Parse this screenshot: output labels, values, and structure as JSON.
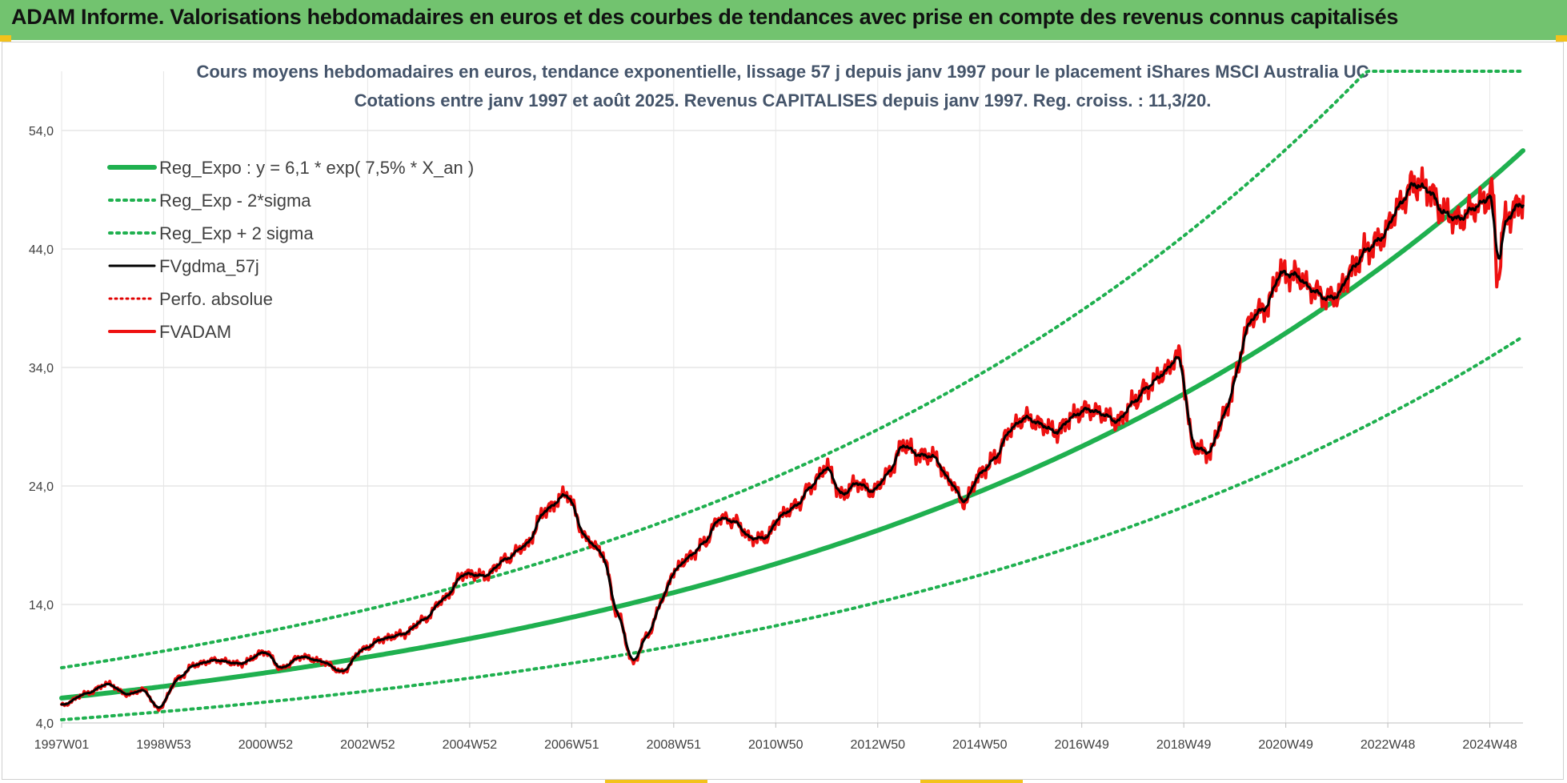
{
  "header": {
    "title": "ADAM Informe. Valorisations hebdomadaires en euros et des courbes de tendances avec prise en compte des revenus connus capitalisés"
  },
  "chart_data": {
    "type": "line",
    "title_lines": [
      "Cours moyens hebdomadaires en euros, tendance exponentielle, lissage 57 j depuis janv 1997 pour le placement iShares MSCI Australia UC",
      "Cotations entre janv 1997 et août 2025. Revenus CAPITALISES depuis janv 1997. Reg. croiss. : 11,3/20."
    ],
    "xlabel": "",
    "ylabel": "",
    "x_tick_labels": [
      "1997W01",
      "1998W53",
      "2000W52",
      "2002W52",
      "2004W52",
      "2006W51",
      "2008W51",
      "2010W50",
      "2012W50",
      "2014W50",
      "2016W49",
      "2018W49",
      "2020W49",
      "2022W48",
      "2024W48"
    ],
    "x_range_years": [
      1997.0,
      2025.65
    ],
    "y_tick_labels": [
      "4,0",
      "14,0",
      "24,0",
      "34,0",
      "44,0",
      "54,0"
    ],
    "y_ticks": [
      4,
      14,
      24,
      34,
      44,
      54
    ],
    "ylim": [
      4,
      59
    ],
    "grid": true,
    "legend_position": "top-left",
    "regression": {
      "a": 6.1,
      "rate": 0.075,
      "label": "Reg_Expo : y = 6,1 * exp( 7,5% *  X_an )"
    },
    "series": [
      {
        "name": "Reg_Expo : y = 6,1 * exp( 7,5% *  X_an )",
        "color": "#1fb04f",
        "style": "solid",
        "width": 6,
        "kind": "trend"
      },
      {
        "name": "Reg_Exp - 2*sigma",
        "color": "#1fb04f",
        "style": "dotted",
        "width": 4,
        "kind": "lower",
        "factor": 0.7
      },
      {
        "name": "Reg_Exp + 2 sigma",
        "color": "#1fb04f",
        "style": "dotted",
        "width": 4,
        "kind": "upper",
        "factor": 1.42,
        "cap": 59
      },
      {
        "name": "FVgdma_57j",
        "color": "#000000",
        "style": "solid",
        "width": 3,
        "kind": "smooth"
      },
      {
        "name": "Perfo. absolue",
        "color": "#e00000",
        "style": "dotted",
        "width": 3,
        "kind": "perfo"
      },
      {
        "name": "FVADAM",
        "color": "#ee1111",
        "style": "solid",
        "width": 4,
        "kind": "price"
      }
    ],
    "price_anchors": {
      "x": [
        1997.0,
        1997.5,
        1997.9,
        1998.3,
        1998.6,
        1998.9,
        1999.3,
        1999.6,
        2000.0,
        2000.5,
        2001.0,
        2001.3,
        2001.7,
        2002.1,
        2002.5,
        2002.9,
        2003.3,
        2003.7,
        2004.1,
        2004.5,
        2004.9,
        2005.3,
        2005.7,
        2006.1,
        2006.5,
        2006.9,
        2007.3,
        2007.6,
        2007.9,
        2008.2,
        2008.5,
        2008.8,
        2009.0,
        2009.3,
        2009.6,
        2009.9,
        2010.2,
        2010.5,
        2010.8,
        2011.1,
        2011.4,
        2011.7,
        2012.0,
        2012.3,
        2012.6,
        2012.9,
        2013.2,
        2013.5,
        2013.8,
        2014.1,
        2014.4,
        2014.7,
        2015.0,
        2015.3,
        2015.6,
        2015.9,
        2016.2,
        2016.5,
        2016.8,
        2017.1,
        2017.4,
        2017.7,
        2018.0,
        2018.3,
        2018.6,
        2018.9,
        2019.2,
        2019.5,
        2019.8,
        2020.05,
        2020.2,
        2020.4,
        2020.6,
        2020.9,
        2021.2,
        2021.5,
        2021.8,
        2022.0,
        2022.3,
        2022.6,
        2022.9,
        2023.2,
        2023.5,
        2023.8,
        2024.1,
        2024.4,
        2024.7,
        2024.9,
        2025.05,
        2025.15,
        2025.3,
        2025.65
      ],
      "y": [
        5.5,
        6.5,
        7.3,
        6.4,
        6.8,
        5.2,
        7.8,
        8.9,
        9.3,
        9.0,
        10.0,
        8.6,
        9.6,
        9.2,
        8.3,
        10.2,
        11.1,
        11.5,
        12.7,
        14.5,
        16.6,
        16.4,
        17.8,
        19.0,
        22.0,
        23.3,
        19.5,
        18.3,
        13.2,
        9.1,
        11.5,
        14.6,
        16.8,
        18.0,
        19.2,
        21.3,
        21.0,
        19.6,
        19.6,
        21.5,
        22.3,
        24.0,
        25.6,
        23.2,
        24.3,
        23.5,
        25.0,
        27.5,
        26.6,
        26.5,
        24.5,
        22.6,
        25.0,
        26.3,
        28.8,
        29.8,
        29.2,
        28.5,
        29.8,
        30.5,
        30.1,
        29.4,
        31.0,
        32.4,
        33.5,
        35.0,
        27.3,
        26.8,
        30.0,
        33.5,
        37.0,
        38.5,
        39.0,
        42.0,
        41.8,
        40.6,
        39.8,
        40.0,
        42.3,
        44.0,
        45.0,
        47.5,
        49.5,
        49.0,
        47.0,
        46.5,
        47.5,
        48.0,
        49.0,
        41.5,
        46.5,
        48.0
      ]
    }
  }
}
